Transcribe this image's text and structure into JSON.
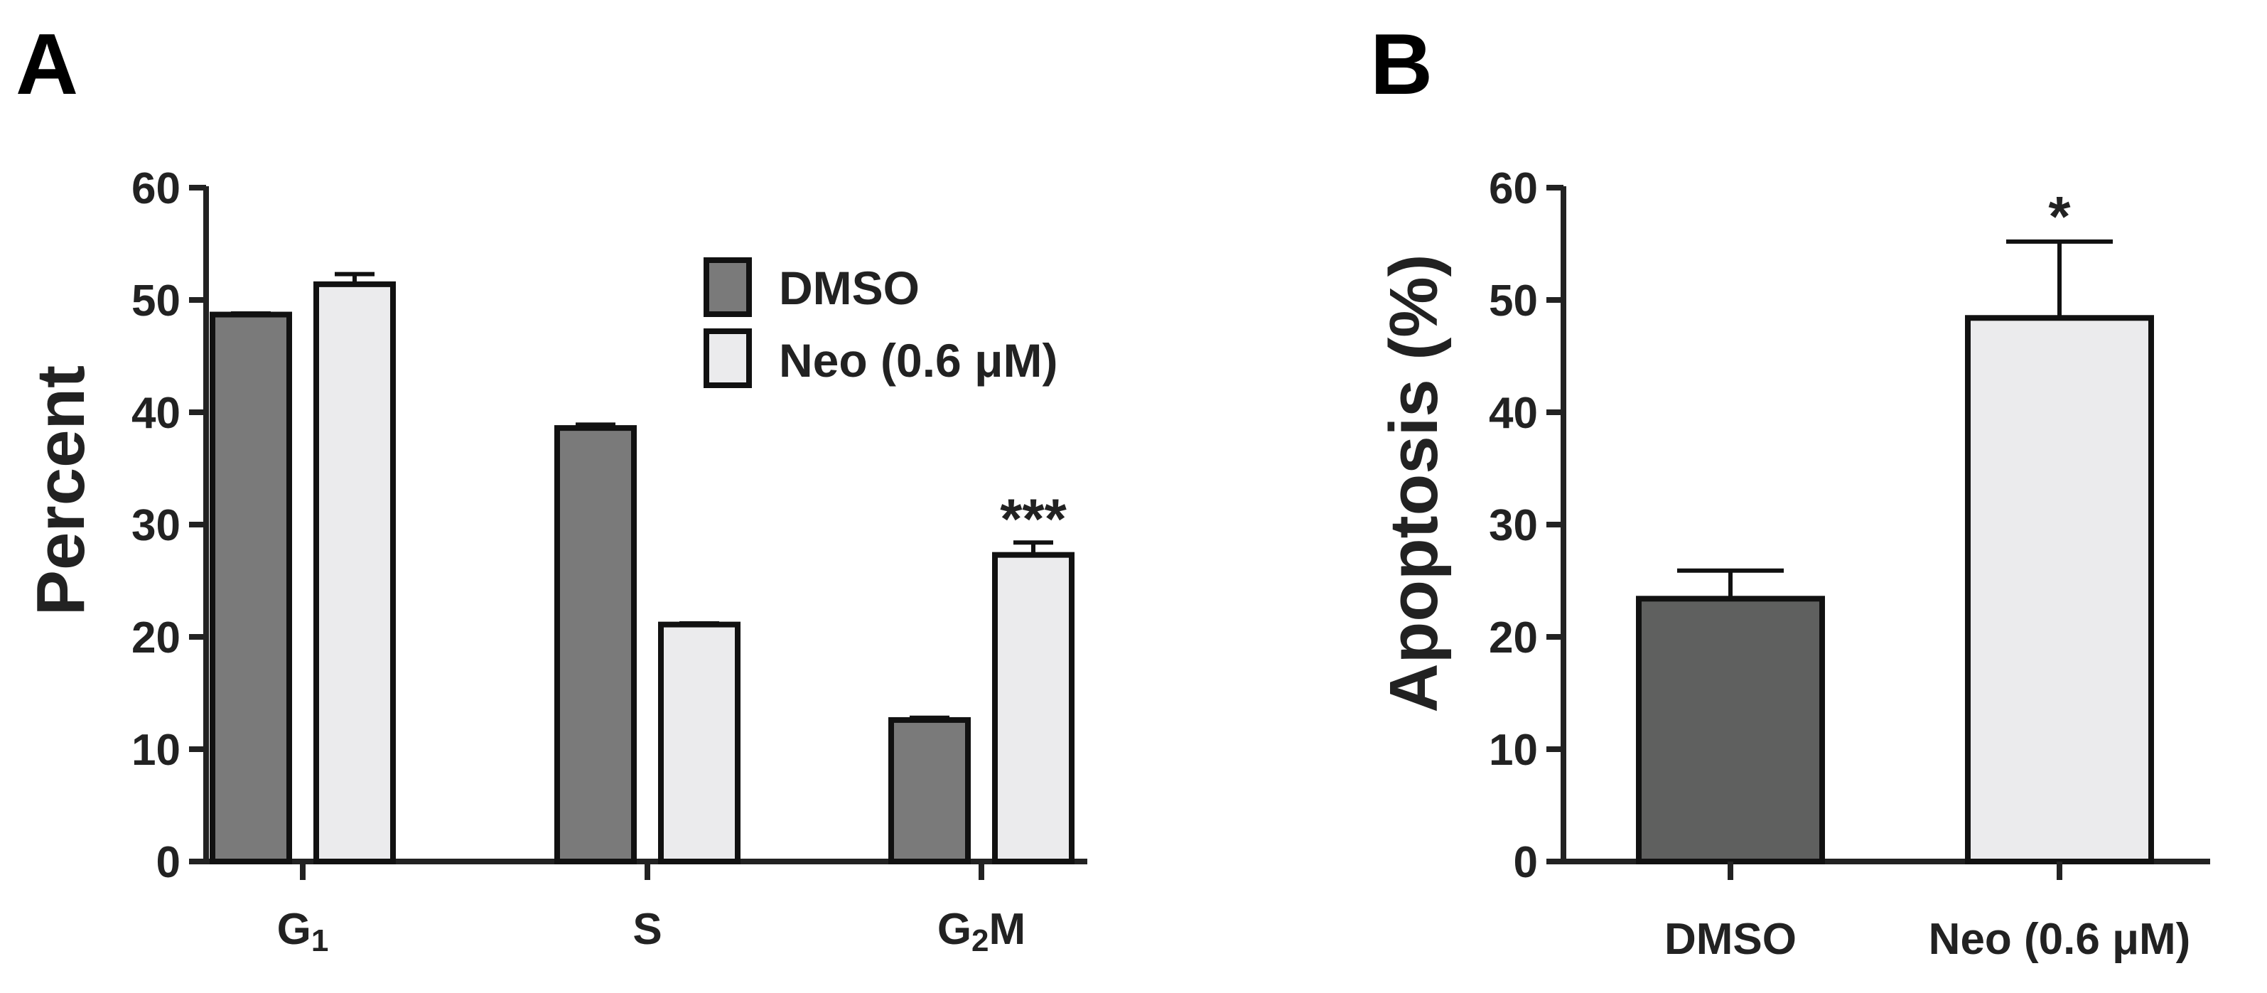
{
  "colors": {
    "dmso": "#7a7a7a",
    "neo": "#ebebed",
    "dmso_b": "#5f605f",
    "neo_b": "#ebebed",
    "axis": "#222222"
  },
  "chart_data": [
    {
      "panel": "A",
      "type": "bar",
      "title": "",
      "xlabel": "",
      "ylabel": "Percent",
      "ylim": [
        0,
        60
      ],
      "yticks": [
        0,
        10,
        20,
        30,
        40,
        50,
        60
      ],
      "categories": [
        {
          "main": "G",
          "sub": "1",
          "tail": ""
        },
        {
          "main": "S",
          "sub": "",
          "tail": ""
        },
        {
          "main": "G",
          "sub": "2",
          "tail": "M"
        }
      ],
      "series": [
        {
          "name": "DMSO",
          "color": "#7a7a7a",
          "values": [
            48.7,
            38.6,
            12.6
          ],
          "errors": [
            0.1,
            0.3,
            0.2
          ]
        },
        {
          "name": "Neo (0.6 μM)",
          "color": "#ebebed",
          "values": [
            51.4,
            21.1,
            27.3
          ],
          "errors": [
            0.9,
            0.1,
            1.1
          ]
        }
      ],
      "annotations": [
        {
          "category_index": 2,
          "series_index": 1,
          "text": "***"
        }
      ],
      "legend_position": "top-right"
    },
    {
      "panel": "B",
      "type": "bar",
      "title": "",
      "xlabel": "",
      "ylabel": "Apoptosis (%)",
      "ylim": [
        0,
        60
      ],
      "yticks": [
        0,
        10,
        20,
        30,
        40,
        50,
        60
      ],
      "categories": [
        "DMSO",
        "Neo (0.6 μM)"
      ],
      "values": [
        23.4,
        48.4
      ],
      "errors": [
        2.5,
        6.8
      ],
      "colors": [
        "#5f605f",
        "#ebebed"
      ],
      "annotations": [
        {
          "category_index": 1,
          "text": "*"
        }
      ]
    }
  ]
}
